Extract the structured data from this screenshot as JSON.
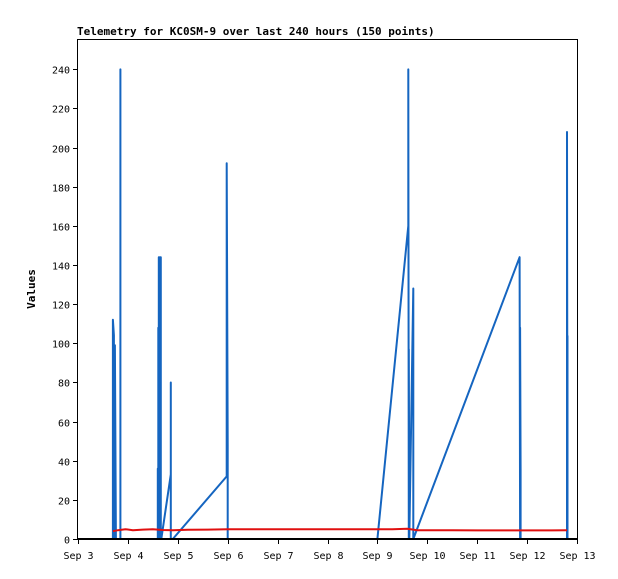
{
  "chart_data": {
    "type": "line",
    "title": "Telemetry for KC0SM-9 over last 240 hours (150 points)",
    "xlabel": "",
    "ylabel": "Values",
    "x_unit": "days (Sep 3 = 3.0)",
    "xlim": [
      3,
      13
    ],
    "ylim": [
      0,
      255
    ],
    "y_ticks": [
      0,
      20,
      40,
      60,
      80,
      100,
      120,
      140,
      160,
      180,
      200,
      220,
      240
    ],
    "x_ticks": [
      3,
      4,
      5,
      6,
      7,
      8,
      9,
      10,
      11,
      12,
      13
    ],
    "x_tick_labels": [
      "Sep 3",
      "Sep 4",
      "Sep 5",
      "Sep 6",
      "Sep 7",
      "Sep 8",
      "Sep 9",
      "Sep 10",
      "Sep 11",
      "Sep 12",
      "Sep 13"
    ],
    "grid": false,
    "series": [
      {
        "name": "",
        "color": "#1565c0",
        "x": [
          3.7,
          3.7,
          3.72,
          3.72,
          3.74,
          3.76,
          3.76,
          3.85,
          3.85,
          3.85,
          4.6,
          4.6,
          4.61,
          4.61,
          4.62,
          4.62,
          4.63,
          4.64,
          4.64,
          4.65,
          4.65,
          4.66,
          4.66,
          4.67,
          4.67,
          4.86,
          4.86,
          4.86,
          4.86,
          4.87,
          4.9,
          4.9,
          5.98,
          5.98,
          6.0,
          6.0,
          9.0,
          9.62,
          9.62,
          9.63,
          9.63,
          9.64,
          9.64,
          9.72,
          9.72,
          11.85,
          11.86,
          11.86,
          11.87,
          11.87,
          12.8,
          12.8,
          12.81,
          12.81
        ],
        "y": [
          0,
          112,
          104,
          0,
          99,
          0,
          0,
          0,
          240,
          0,
          0,
          36,
          0,
          108,
          0,
          144,
          24,
          144,
          0,
          144,
          0,
          144,
          0,
          5,
          0,
          33,
          80,
          0,
          0,
          0,
          0,
          0,
          32,
          192,
          48,
          0,
          0,
          160,
          240,
          0,
          97,
          0,
          0,
          128,
          0,
          144,
          0,
          108,
          36,
          0,
          0,
          208,
          0,
          104
        ]
      },
      {
        "name": "",
        "color": "#e01010",
        "x": [
          3.7,
          3.8,
          3.95,
          4.1,
          4.3,
          4.5,
          4.7,
          4.9,
          5.2,
          5.6,
          6.0,
          6.5,
          7.0,
          7.5,
          8.0,
          8.5,
          9.0,
          9.3,
          9.6,
          9.8,
          10.0,
          10.5,
          11.0,
          11.5,
          12.0,
          12.5,
          12.8
        ],
        "y": [
          4,
          4.5,
          5,
          4.5,
          4.8,
          5,
          4.6,
          4.5,
          4.7,
          4.8,
          5,
          5,
          5,
          5,
          5,
          5,
          5,
          5,
          5.2,
          4.5,
          4.5,
          4.5,
          4.4,
          4.4,
          4.4,
          4.4,
          4.5
        ]
      },
      {
        "name": "",
        "color": "#000000",
        "x": [
          3,
          13
        ],
        "y": [
          0,
          0
        ]
      }
    ]
  }
}
